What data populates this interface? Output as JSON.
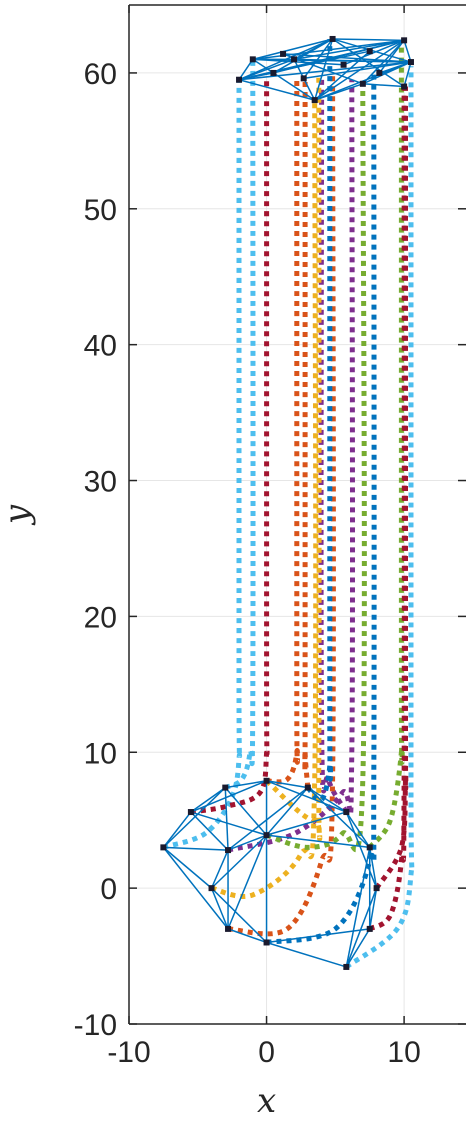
{
  "chart_data": {
    "type": "line",
    "xlabel": "x",
    "ylabel": "y",
    "xlim": [
      -10,
      14.5
    ],
    "ylim": [
      -10,
      65
    ],
    "x_ticks": [
      -10,
      0,
      10
    ],
    "y_ticks": [
      -10,
      0,
      10,
      20,
      30,
      40,
      50,
      60
    ],
    "x_tick_labels": [
      "-10",
      "0",
      "10"
    ],
    "y_tick_labels": [
      "-10",
      "0",
      "10",
      "20",
      "30",
      "40",
      "50",
      "60"
    ],
    "grid": true,
    "initial_formation": {
      "color": "#0072BD",
      "nodes": [
        [
          -7.5,
          3.0
        ],
        [
          -5.5,
          5.6
        ],
        [
          -3.0,
          7.4
        ],
        [
          0.0,
          7.9
        ],
        [
          3.0,
          7.4
        ],
        [
          5.8,
          5.6
        ],
        [
          7.5,
          3.0
        ],
        [
          8.0,
          0.0
        ],
        [
          7.5,
          -3.0
        ],
        [
          5.8,
          -5.8
        ],
        [
          0.0,
          -4.0
        ],
        [
          -2.8,
          -3.0
        ],
        [
          -4.0,
          0.0
        ],
        [
          -2.8,
          2.8
        ],
        [
          0.0,
          3.9
        ]
      ],
      "edges": [
        [
          0,
          1
        ],
        [
          1,
          2
        ],
        [
          2,
          3
        ],
        [
          3,
          4
        ],
        [
          4,
          5
        ],
        [
          5,
          6
        ],
        [
          6,
          7
        ],
        [
          7,
          8
        ],
        [
          8,
          9
        ],
        [
          9,
          10
        ],
        [
          10,
          11
        ],
        [
          11,
          12
        ],
        [
          12,
          0
        ],
        [
          0,
          13
        ],
        [
          0,
          11
        ],
        [
          0,
          2
        ],
        [
          1,
          13
        ],
        [
          1,
          14
        ],
        [
          1,
          3
        ],
        [
          2,
          13
        ],
        [
          2,
          14
        ],
        [
          3,
          14
        ],
        [
          3,
          5
        ],
        [
          4,
          14
        ],
        [
          4,
          6
        ],
        [
          5,
          14
        ],
        [
          5,
          7
        ],
        [
          6,
          8
        ],
        [
          6,
          14
        ],
        [
          7,
          9
        ],
        [
          8,
          10
        ],
        [
          10,
          14
        ],
        [
          10,
          12
        ],
        [
          11,
          13
        ],
        [
          11,
          14
        ],
        [
          12,
          13
        ],
        [
          12,
          14
        ],
        [
          13,
          14
        ],
        [
          9,
          6
        ],
        [
          4,
          13
        ]
      ]
    },
    "final_formation": {
      "color": "#0072BD",
      "nodes": [
        [
          -2.0,
          59.5
        ],
        [
          -1.0,
          61.0
        ],
        [
          2.0,
          61.0
        ],
        [
          3.5,
          58.0
        ],
        [
          4.8,
          62.5
        ],
        [
          7.0,
          59.2
        ],
        [
          8.2,
          60.0
        ],
        [
          10.0,
          62.4
        ],
        [
          10.0,
          59.0
        ],
        [
          10.5,
          60.8
        ],
        [
          0.5,
          60.0
        ],
        [
          2.7,
          59.6
        ],
        [
          5.6,
          60.6
        ],
        [
          7.5,
          61.6
        ],
        [
          1.2,
          61.4
        ]
      ],
      "edges": [
        [
          0,
          1
        ],
        [
          1,
          2
        ],
        [
          2,
          4
        ],
        [
          4,
          7
        ],
        [
          7,
          9
        ],
        [
          9,
          8
        ],
        [
          8,
          5
        ],
        [
          5,
          3
        ],
        [
          3,
          0
        ],
        [
          0,
          2
        ],
        [
          0,
          4
        ],
        [
          0,
          7
        ],
        [
          0,
          9
        ],
        [
          1,
          4
        ],
        [
          1,
          7
        ],
        [
          1,
          9
        ],
        [
          1,
          3
        ],
        [
          2,
          3
        ],
        [
          2,
          7
        ],
        [
          2,
          9
        ],
        [
          3,
          4
        ],
        [
          3,
          7
        ],
        [
          3,
          9
        ],
        [
          4,
          9
        ],
        [
          4,
          8
        ],
        [
          5,
          7
        ],
        [
          5,
          9
        ],
        [
          6,
          7
        ],
        [
          6,
          9
        ],
        [
          0,
          10
        ],
        [
          10,
          4
        ],
        [
          10,
          7
        ],
        [
          11,
          4
        ],
        [
          11,
          9
        ],
        [
          12,
          1
        ],
        [
          12,
          7
        ],
        [
          13,
          0
        ],
        [
          13,
          3
        ],
        [
          14,
          9
        ],
        [
          14,
          5
        ]
      ]
    },
    "trajectories": [
      {
        "color": "#4DBEEE",
        "points": [
          [
            -7.5,
            3.0
          ],
          [
            -4.5,
            4.0
          ],
          [
            -2.6,
            6.5
          ],
          [
            -2.0,
            9.5
          ],
          [
            -2.0,
            15.0
          ],
          [
            -2.0,
            59.5
          ]
        ]
      },
      {
        "color": "#A2142F",
        "points": [
          [
            -5.5,
            5.6
          ],
          [
            -3.0,
            6.0
          ],
          [
            -0.5,
            7.0
          ],
          [
            0.0,
            10.0
          ],
          [
            0.0,
            15.0
          ],
          [
            0.0,
            59.5
          ]
        ]
      },
      {
        "color": "#4DBEEE",
        "points": [
          [
            -3.0,
            7.4
          ],
          [
            -1.8,
            8.0
          ],
          [
            -1.2,
            10.0
          ],
          [
            -1.0,
            14.0
          ],
          [
            -1.0,
            61.0
          ]
        ]
      },
      {
        "color": "#D95319",
        "points": [
          [
            0.0,
            7.9
          ],
          [
            1.5,
            8.0
          ],
          [
            2.2,
            10.0
          ],
          [
            2.2,
            14.0
          ],
          [
            2.2,
            59.5
          ]
        ]
      },
      {
        "color": "#D95319",
        "points": [
          [
            3.0,
            7.4
          ],
          [
            2.8,
            10.0
          ],
          [
            2.8,
            13.0
          ],
          [
            2.8,
            59.5
          ]
        ]
      },
      {
        "color": "#7E2F8E",
        "points": [
          [
            5.8,
            5.6
          ],
          [
            4.5,
            8.0
          ],
          [
            4.0,
            12.0
          ],
          [
            4.0,
            59.5
          ]
        ]
      },
      {
        "color": "#77AC30",
        "points": [
          [
            7.5,
            3.0
          ],
          [
            9.0,
            5.0
          ],
          [
            9.8,
            10.0
          ],
          [
            9.8,
            14.0
          ],
          [
            9.8,
            62.0
          ]
        ]
      },
      {
        "color": "#A2142F",
        "points": [
          [
            8.0,
            0.0
          ],
          [
            9.8,
            3.0
          ],
          [
            10.1,
            8.0
          ],
          [
            10.1,
            12.0
          ],
          [
            10.1,
            59.0
          ]
        ]
      },
      {
        "color": "#A2142F",
        "points": [
          [
            7.5,
            -3.0
          ],
          [
            9.0,
            -2.0
          ],
          [
            9.8,
            2.0
          ],
          [
            10.0,
            8.0
          ],
          [
            10.0,
            59.0
          ]
        ]
      },
      {
        "color": "#4DBEEE",
        "points": [
          [
            5.8,
            -5.8
          ],
          [
            9.5,
            -3.0
          ],
          [
            10.5,
            1.0
          ],
          [
            10.5,
            8.0
          ],
          [
            10.5,
            60.5
          ]
        ]
      },
      {
        "color": "#0072BD",
        "points": [
          [
            0.0,
            -4.0
          ],
          [
            5.0,
            -3.0
          ],
          [
            7.5,
            2.0
          ],
          [
            7.8,
            8.0
          ],
          [
            7.8,
            60.0
          ]
        ]
      },
      {
        "color": "#D95319",
        "points": [
          [
            -2.8,
            -3.0
          ],
          [
            1.5,
            -3.0
          ],
          [
            4.0,
            2.0
          ],
          [
            4.8,
            8.0
          ],
          [
            4.8,
            60.0
          ]
        ]
      },
      {
        "color": "#EDB120",
        "points": [
          [
            -4.0,
            0.0
          ],
          [
            -1.0,
            -0.5
          ],
          [
            2.5,
            2.5
          ],
          [
            3.5,
            8.0
          ],
          [
            3.5,
            58.0
          ]
        ]
      },
      {
        "color": "#7E2F8E",
        "points": [
          [
            -2.8,
            2.8
          ],
          [
            2.0,
            4.0
          ],
          [
            5.5,
            7.0
          ],
          [
            6.2,
            10.0
          ],
          [
            6.2,
            59.5
          ]
        ]
      },
      {
        "color": "#77AC30",
        "points": [
          [
            0.0,
            3.9
          ],
          [
            3.0,
            3.0
          ],
          [
            5.5,
            4.0
          ],
          [
            7.0,
            8.0
          ],
          [
            7.0,
            59.2
          ]
        ]
      },
      {
        "color": "#0072BD",
        "points": [
          [
            3.0,
            7.4
          ],
          [
            4.0,
            6.5
          ],
          [
            4.6,
            9.0
          ],
          [
            4.6,
            13.0
          ],
          [
            4.6,
            62.5
          ]
        ]
      },
      {
        "color": "#EDB120",
        "points": [
          [
            0.0,
            7.9
          ],
          [
            3.5,
            5.0
          ],
          [
            3.8,
            9.0
          ],
          [
            3.8,
            60.0
          ]
        ]
      }
    ]
  }
}
